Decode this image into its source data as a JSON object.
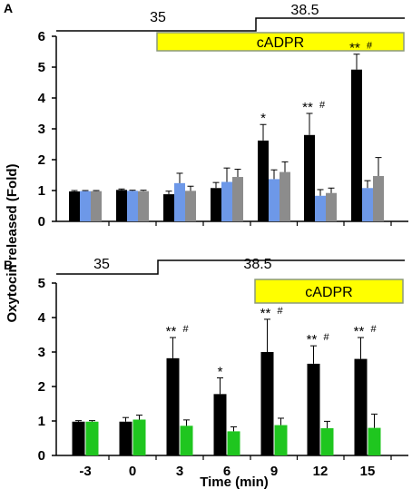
{
  "figure": {
    "ylabel": "Oxytocin released (Fold)",
    "xlabel": "Time (min)",
    "colors": {
      "bar_black": "#000000",
      "bar_blue": "#6d98e8",
      "bar_gray": "#8c8c8c",
      "bar_green": "#1fc61f",
      "cadpr_fill": "#ffff00",
      "cadpr_border": "#8c9a7a"
    }
  },
  "chart_data": [
    {
      "type": "bar",
      "panel": "A",
      "categories": [
        "-3",
        "0",
        "3",
        "6",
        "9",
        "12",
        "15"
      ],
      "ylim": [
        0,
        6
      ],
      "yticks": [
        "0",
        "1",
        "2",
        "3",
        "4",
        "5",
        "6"
      ],
      "grid": false,
      "temperature": {
        "low": "35",
        "high": "38.5"
      },
      "cadpr_label": "cADPR",
      "series": [
        {
          "color": "#000000",
          "values": [
            0.97,
            1.02,
            0.88,
            1.08,
            2.62,
            2.8,
            4.92
          ],
          "errors": [
            0.03,
            0.03,
            0.1,
            0.18,
            0.52,
            0.7,
            0.5
          ]
        },
        {
          "color": "#6d98e8",
          "values": [
            0.98,
            0.99,
            1.24,
            1.28,
            1.37,
            0.83,
            1.08
          ],
          "errors": [
            0.02,
            0.02,
            0.32,
            0.45,
            0.3,
            0.2,
            0.24
          ]
        },
        {
          "color": "#8c8c8c",
          "values": [
            0.98,
            0.98,
            0.99,
            1.44,
            1.6,
            0.92,
            1.47
          ],
          "errors": [
            0.02,
            0.03,
            0.15,
            0.25,
            0.33,
            0.16,
            0.6
          ]
        }
      ],
      "annotations": [
        {
          "category": "9",
          "stars": "*",
          "hash": ""
        },
        {
          "category": "12",
          "stars": "**",
          "hash": "#"
        },
        {
          "category": "15",
          "stars": "**",
          "hash": "#"
        }
      ]
    },
    {
      "type": "bar",
      "panel": "B",
      "categories": [
        "-3",
        "0",
        "3",
        "6",
        "9",
        "12",
        "15"
      ],
      "ylim": [
        0,
        5
      ],
      "yticks": [
        "0",
        "1",
        "2",
        "3",
        "4",
        "5"
      ],
      "grid": false,
      "temperature": {
        "low": "35",
        "high": "38.5"
      },
      "cadpr_label": "cADPR",
      "series": [
        {
          "color": "#000000",
          "values": [
            0.98,
            0.98,
            2.82,
            1.78,
            3.0,
            2.66,
            2.8
          ],
          "errors": [
            0.03,
            0.12,
            0.6,
            0.47,
            0.95,
            0.52,
            0.62
          ]
        },
        {
          "color": "#1fc61f",
          "values": [
            0.98,
            1.04,
            0.86,
            0.7,
            0.88,
            0.79,
            0.8
          ],
          "errors": [
            0.03,
            0.13,
            0.17,
            0.13,
            0.2,
            0.2,
            0.4
          ]
        }
      ],
      "annotations": [
        {
          "category": "3",
          "stars": "**",
          "hash": "#"
        },
        {
          "category": "6",
          "stars": "*",
          "hash": ""
        },
        {
          "category": "9",
          "stars": "**",
          "hash": "#"
        },
        {
          "category": "12",
          "stars": "**",
          "hash": "#"
        },
        {
          "category": "15",
          "stars": "**",
          "hash": "#"
        }
      ]
    }
  ]
}
